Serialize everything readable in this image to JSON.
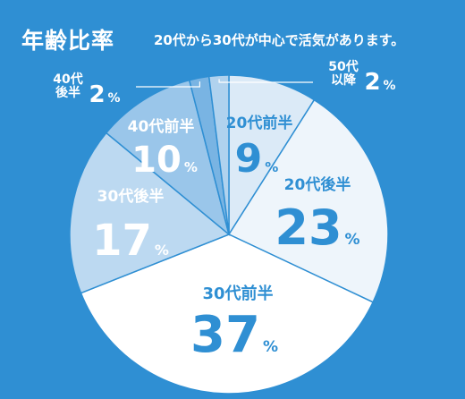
{
  "title": "年齢比率",
  "subtitle": "20代から30代が中心で活気があります。",
  "colors": {
    "background": "#2f8fd3",
    "label_dark": "#2f8fd3",
    "label_light": "#ffffff"
  },
  "chart_data": {
    "type": "pie",
    "title": "年齢比率",
    "unit": "%",
    "start_angle_deg": 0,
    "direction": "clockwise",
    "slices": [
      {
        "label": "20代前半",
        "label_lines": [
          "20代前半"
        ],
        "value": 9,
        "color": "#dbeaf7",
        "label_color": "#2f8fd3"
      },
      {
        "label": "20代後半",
        "label_lines": [
          "20代後半"
        ],
        "value": 23,
        "color": "#eef5fb",
        "label_color": "#2f8fd3"
      },
      {
        "label": "30代前半",
        "label_lines": [
          "30代前半"
        ],
        "value": 37,
        "color": "#ffffff",
        "label_color": "#2f8fd3"
      },
      {
        "label": "30代後半",
        "label_lines": [
          "30代後半"
        ],
        "value": 17,
        "color": "#bcd9f1",
        "label_color": "#ffffff"
      },
      {
        "label": "40代前半",
        "label_lines": [
          "40代前半"
        ],
        "value": 10,
        "color": "#9ac6ea",
        "label_color": "#ffffff"
      },
      {
        "label": "40代後半",
        "label_lines": [
          "40代",
          "後半"
        ],
        "value": 2,
        "color": "#79b4e3",
        "label_color": "#ffffff"
      },
      {
        "label": "50代以降",
        "label_lines": [
          "50代",
          "以降"
        ],
        "value": 2,
        "color": "#b0d2ee",
        "label_color": "#ffffff"
      }
    ]
  }
}
